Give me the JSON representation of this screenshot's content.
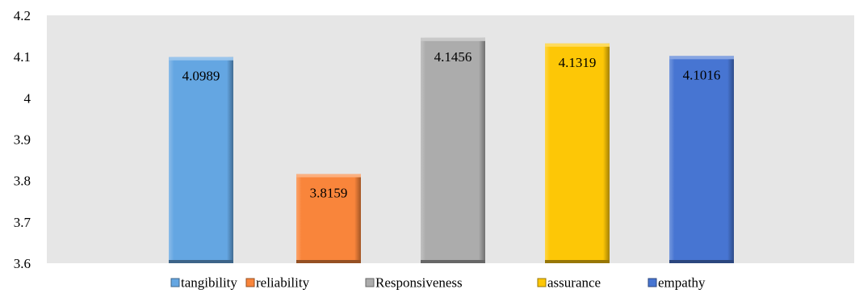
{
  "chart_data": {
    "type": "bar",
    "title": "",
    "xlabel": "",
    "ylabel": "",
    "categories": [
      "tangibility",
      "reliability",
      "Responsiveness",
      "assurance",
      "empathy"
    ],
    "values": [
      4.0989,
      3.8159,
      4.1456,
      4.1319,
      4.1016
    ],
    "data_labels": [
      "4.0989",
      "3.8159",
      "4.1456",
      "4.1319",
      "4.1016"
    ],
    "colors": [
      "#64a6e2",
      "#f9853b",
      "#acacac",
      "#fdc706",
      "#4775d2"
    ],
    "ylim": [
      3.6,
      4.2
    ],
    "yticks": [
      3.6,
      3.7,
      3.8,
      3.9,
      4.0,
      4.1,
      4.2
    ],
    "ytick_labels": [
      "3.6",
      "3.7",
      "3.8",
      "3.9",
      "4",
      "4.1",
      "4.2"
    ],
    "grid": false,
    "plot_background": "#e6e6e6",
    "legend": {
      "position": "bottom",
      "entries": [
        "tangibility",
        "reliability",
        "Responsiveness",
        "assurance",
        "empathy"
      ]
    }
  }
}
